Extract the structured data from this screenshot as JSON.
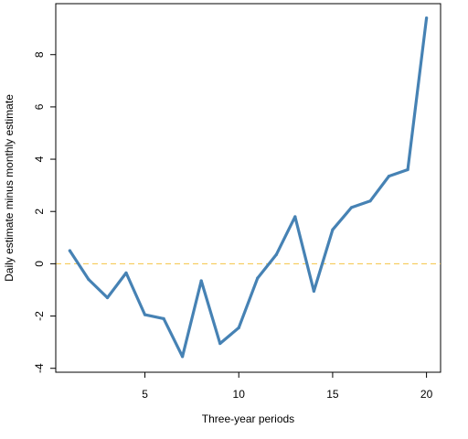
{
  "chart_data": {
    "type": "line",
    "title": "",
    "xlabel": "Three-year periods",
    "ylabel": "Daily estimate minus monthly estimate",
    "xlim": [
      0.25,
      20.75
    ],
    "ylim": [
      -4.15,
      9.95
    ],
    "x_ticks": [
      5,
      10,
      15,
      20
    ],
    "y_ticks": [
      -4,
      -2,
      0,
      2,
      4,
      6,
      8
    ],
    "x_tick_labels": [
      "5",
      "10",
      "15",
      "20"
    ],
    "y_tick_labels": [
      "-4",
      "-2",
      "0",
      "2",
      "4",
      "6",
      "8"
    ],
    "grid": false,
    "legend": "none",
    "series": [
      {
        "color": "#4682b4",
        "x": [
          1,
          2,
          3,
          4,
          5,
          6,
          7,
          8,
          9,
          10,
          11,
          12,
          13,
          14,
          15,
          16,
          17,
          18,
          19,
          20
        ],
        "values": [
          0.5,
          -0.6,
          -1.3,
          -0.35,
          -1.95,
          -2.1,
          -3.55,
          -0.65,
          -3.05,
          -2.45,
          -0.55,
          0.35,
          1.8,
          -1.05,
          1.3,
          2.15,
          2.4,
          3.35,
          3.6,
          9.4
        ]
      }
    ],
    "reference_lines": [
      {
        "axis": "y",
        "value": 0,
        "color": "#f5c242",
        "style": "dashed"
      }
    ]
  }
}
